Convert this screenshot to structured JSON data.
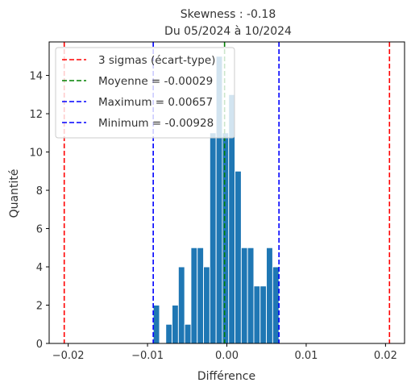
{
  "chart_data": {
    "type": "bar",
    "title": "Skewness : -0.18",
    "subtitle": "Du 05/2024 à 10/2024",
    "xlabel": "Différence",
    "ylabel": "Quantité",
    "xlim": [
      -0.0224,
      0.0224
    ],
    "ylim": [
      0,
      15.75
    ],
    "x_ticks": [
      -0.02,
      -0.01,
      0.0,
      0.01,
      0.02
    ],
    "x_tick_labels": [
      "−0.02",
      "−0.01",
      "0.00",
      "0.01",
      "0.02"
    ],
    "y_ticks": [
      0,
      2,
      4,
      6,
      8,
      10,
      12,
      14
    ],
    "y_tick_labels": [
      "0",
      "2",
      "4",
      "6",
      "8",
      "10",
      "12",
      "14"
    ],
    "grid": false,
    "legend_position": "top-left",
    "histogram": {
      "bin_start": -0.00928,
      "bin_end": 0.00657,
      "bin_count": 20,
      "counts": [
        2,
        0,
        1,
        2,
        4,
        1,
        5,
        5,
        4,
        11,
        15,
        11,
        13,
        9,
        5,
        5,
        3,
        3,
        5,
        4
      ],
      "color": "#1f77b4"
    },
    "reference_lines": [
      {
        "name": "3 sigmas (écart-type)",
        "x": [
          -0.0205,
          0.0205
        ],
        "color": "#ff0000"
      },
      {
        "name": "Moyenne = -0.00029",
        "x": [
          -0.00029
        ],
        "color": "#008000"
      },
      {
        "name": "Maximum = 0.00657",
        "x": [
          0.00657
        ],
        "color": "#0000ff"
      },
      {
        "name": "Minimum = -0.00928",
        "x": [
          -0.00928
        ],
        "color": "#0000ff"
      }
    ]
  }
}
